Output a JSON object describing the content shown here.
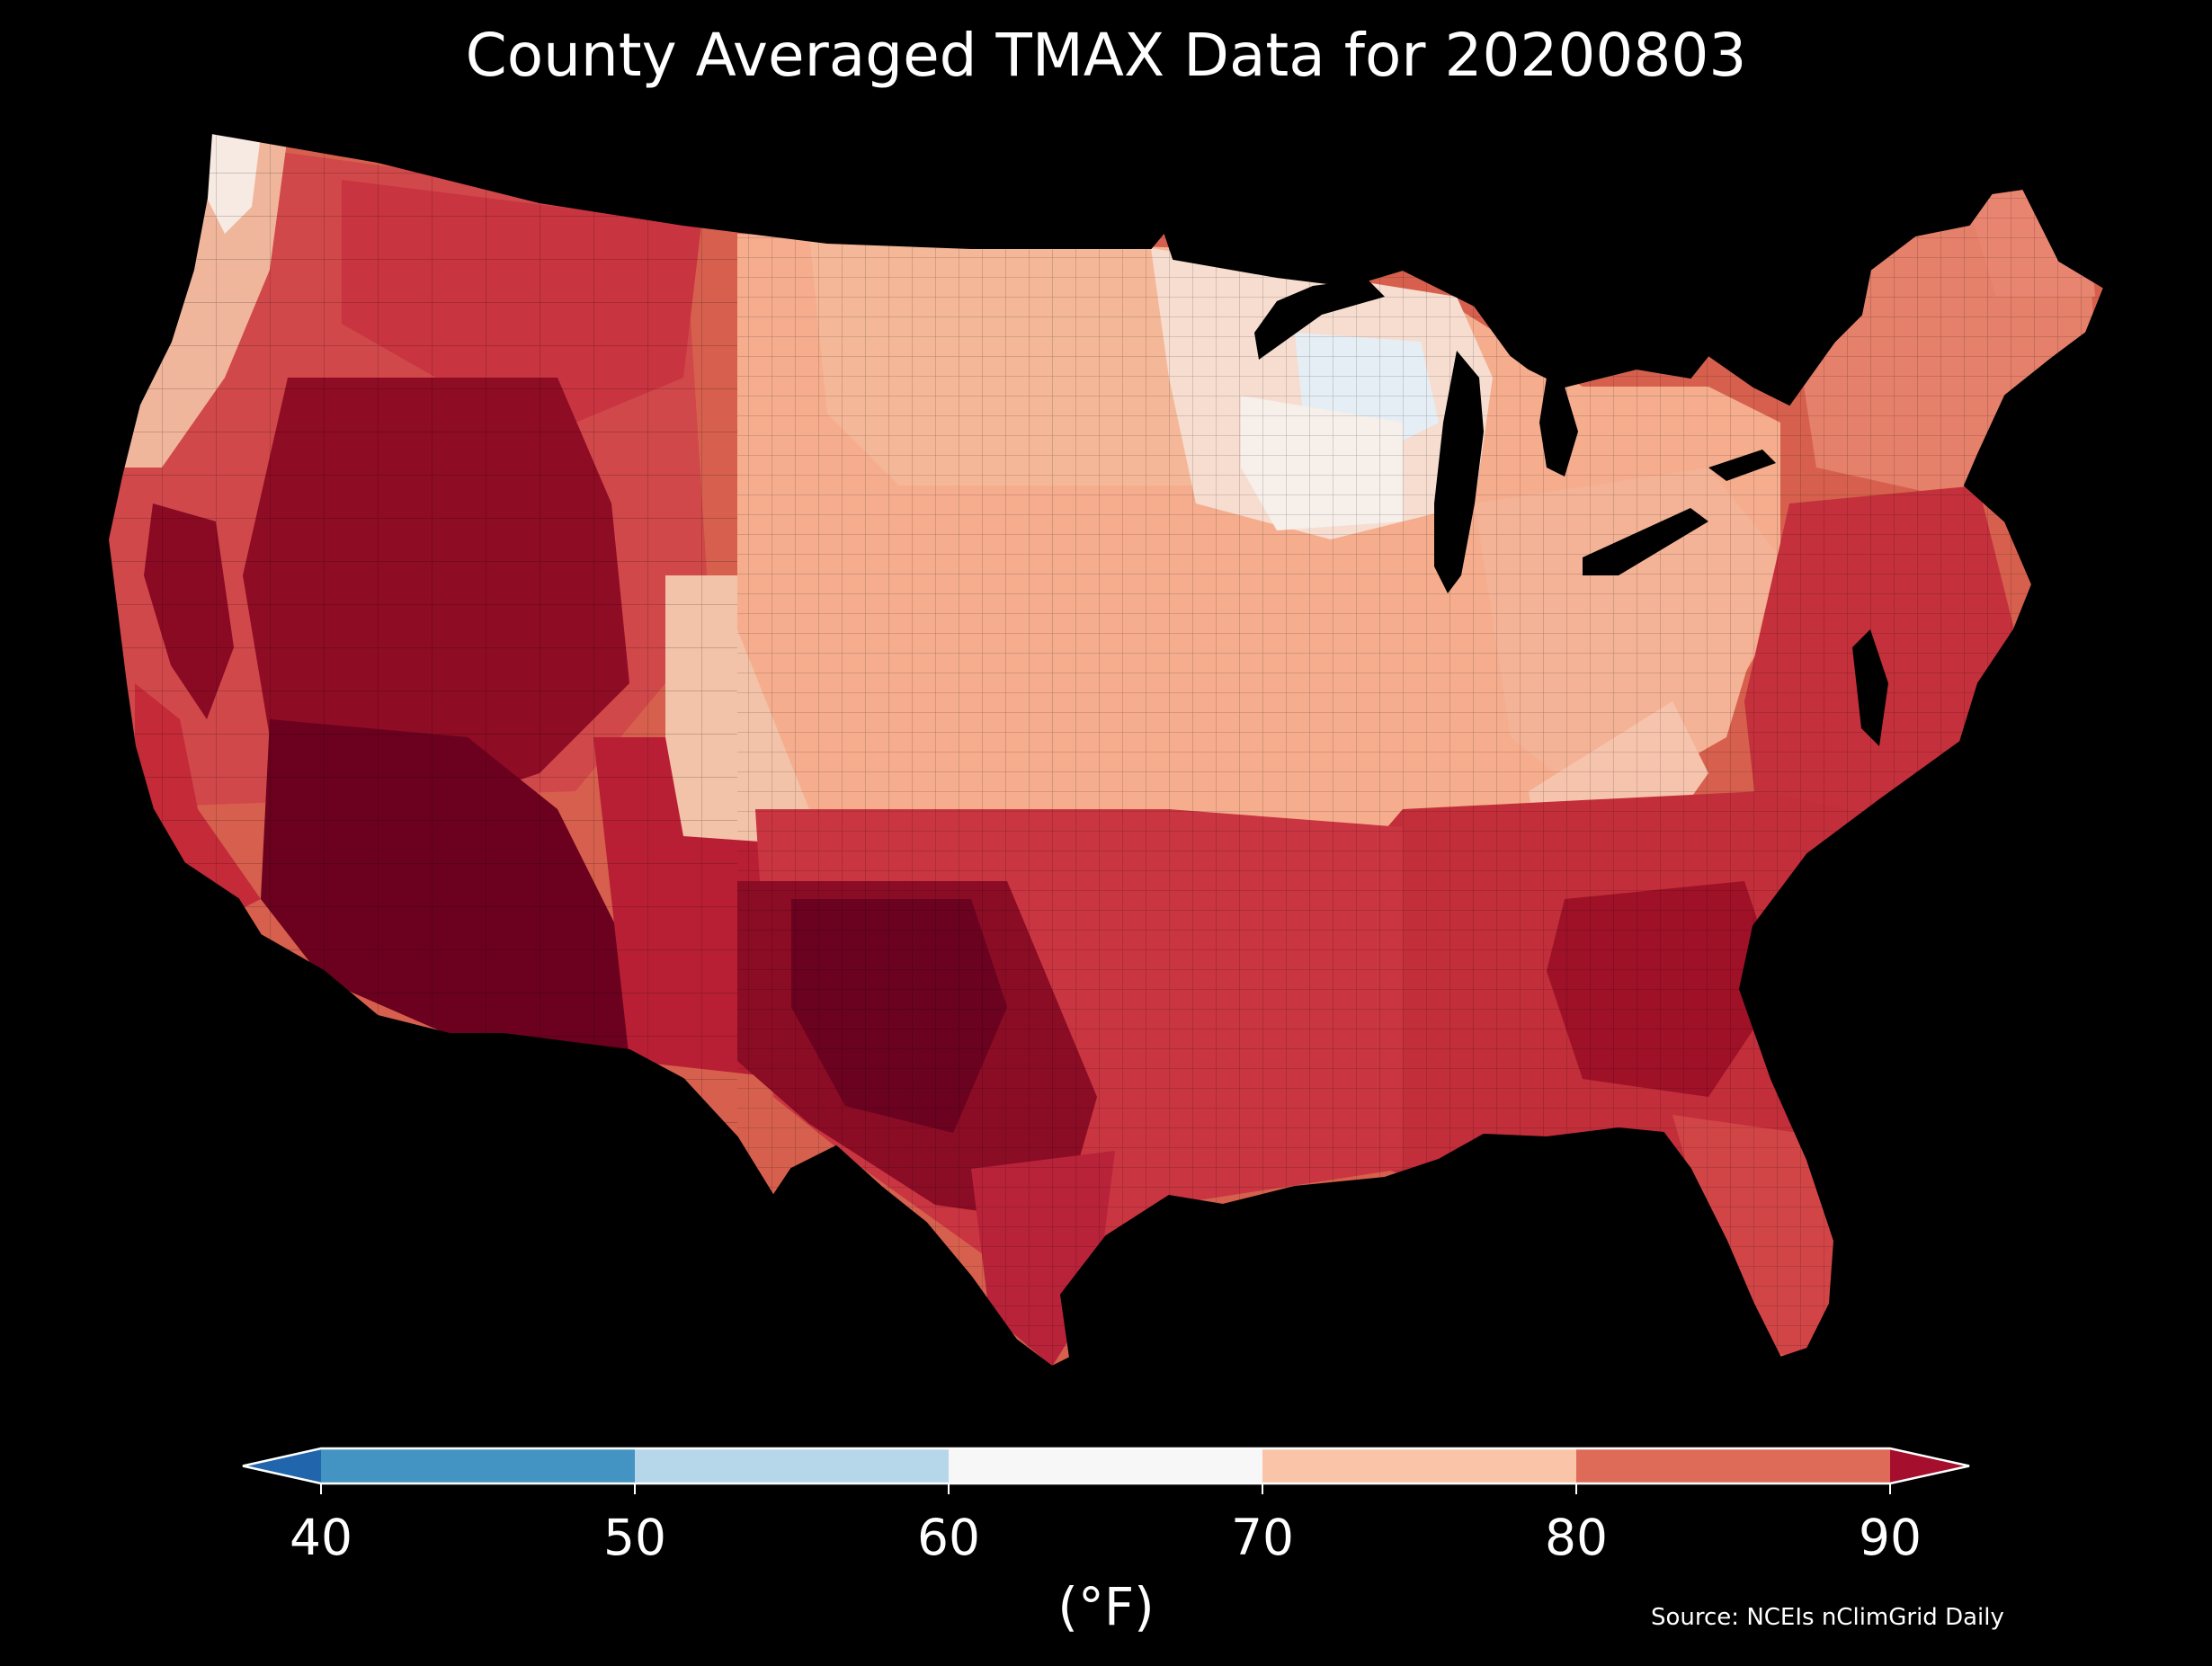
{
  "title": "County Averaged TMAX Data for 20200803",
  "map": {
    "region": "Contiguous United States, county boundaries",
    "variable": "TMAX",
    "units": "(°F)",
    "regions_by_band": [
      {
        "area": "Desert Southwest, Central Valley CA, west/central Texas",
        "value_range": "90+",
        "color": "#67001f"
      },
      {
        "area": "Gulf Coast, Southeast, Georgia/Carolinas, Mid-Atlantic coast",
        "value_range": "80-90",
        "color": "#c0303a"
      },
      {
        "area": "Northern Rockies, Pacific Northwest interior, New England",
        "value_range": "80-90",
        "color": "#d6604d"
      },
      {
        "area": "Great Plains, Midwest, Ohio Valley, Appalachians",
        "value_range": "70-80",
        "color": "#f4a582"
      },
      {
        "area": "Upper Midwest (Minnesota, Wisconsin), NW Washington coast",
        "value_range": "60-70",
        "color": "#f7f7f7"
      },
      {
        "area": "Northern Wisconsin / Upper Michigan",
        "value_range": "50-60",
        "color": "#d1e5f0"
      }
    ]
  },
  "colorbar": {
    "ticks": [
      "40",
      "50",
      "60",
      "70",
      "80",
      "90"
    ],
    "bins": [
      {
        "from": null,
        "to": 40,
        "color": "#2166ac"
      },
      {
        "from": 40,
        "to": 50,
        "color": "#4393c3"
      },
      {
        "from": 50,
        "to": 60,
        "color": "#b6d7ea"
      },
      {
        "from": 60,
        "to": 70,
        "color": "#f7f7f7"
      },
      {
        "from": 70,
        "to": 80,
        "color": "#f9c4a8"
      },
      {
        "from": 80,
        "to": 90,
        "color": "#de6a58"
      },
      {
        "from": 90,
        "to": null,
        "color": "#a50f2d"
      }
    ],
    "extend": "both",
    "label": "(°F)"
  },
  "source": "Source: NCEIs nClimGrid Daily"
}
